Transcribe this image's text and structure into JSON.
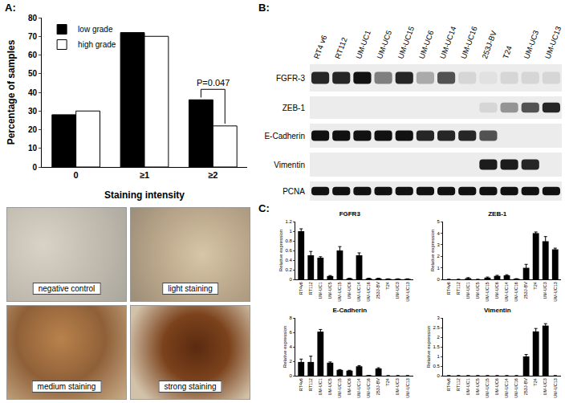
{
  "chart_data": [
    {
      "type": "bar",
      "x_label": "Staining intensity",
      "y_label": "Percentage of samples",
      "categories": [
        "0",
        "≥1",
        "≥2"
      ],
      "series": [
        {
          "name": "low grade",
          "color": "#000000",
          "values": [
            28,
            72,
            36
          ]
        },
        {
          "name": "high grade",
          "color": "#ffffff",
          "values": [
            30,
            70,
            22
          ]
        }
      ],
      "ylim": [
        0,
        80
      ],
      "yticks": [
        0,
        10,
        20,
        30,
        40,
        50,
        60,
        70,
        80
      ],
      "legend": "upper left",
      "grid": false,
      "annotations": [
        {
          "text": "P=0.047",
          "category": "≥2"
        }
      ]
    },
    {
      "type": "bar",
      "title": "FGFR3",
      "y_label": "Relative expression",
      "categories": [
        "RT4v6",
        "RT112",
        "UM-UC1",
        "UM-UC5",
        "UM-UC15",
        "UM-UC6",
        "UM-UC14",
        "UM-UC16",
        "253J-BV",
        "T24",
        "UM-UC3",
        "UM-UC13"
      ],
      "values": [
        1.0,
        0.5,
        0.45,
        0.07,
        0.6,
        0.02,
        0.5,
        0.02,
        0.02,
        0.01,
        0.01,
        0.01
      ],
      "errors": [
        0.05,
        0.08,
        0.02,
        0.01,
        0.08,
        0.0,
        0.05,
        0.0,
        0.0,
        0.0,
        0.0,
        0.0
      ],
      "color": "#000000",
      "ylim": [
        0,
        1.2
      ],
      "yticks": [
        0,
        0.2,
        0.4,
        0.6,
        0.8,
        1,
        1.2
      ],
      "grid": false
    },
    {
      "type": "bar",
      "title": "ZEB-1",
      "y_label": "Relative expression",
      "categories": [
        "RT4v6",
        "RT112",
        "UM-UC1",
        "UM-UC5",
        "UM-UC15",
        "UM-UC6",
        "UM-UC14",
        "UM-UC16",
        "253J-BV",
        "T24",
        "UM-UC3",
        "UM-UC13"
      ],
      "values": [
        0.0,
        0.0,
        0.1,
        0.0,
        0.15,
        0.3,
        0.35,
        0.05,
        1.0,
        4.0,
        3.3,
        2.6
      ],
      "errors": [
        0.0,
        0.0,
        0.05,
        0.0,
        0.05,
        0.05,
        0.05,
        0.0,
        0.3,
        0.1,
        0.4,
        0.1
      ],
      "color": "#000000",
      "ylim": [
        0,
        5
      ],
      "yticks": [
        0,
        1,
        2,
        3,
        4,
        5
      ],
      "grid": false
    },
    {
      "type": "bar",
      "title": "E-Cadherin",
      "y_label": "Relative expression",
      "categories": [
        "RT4v6",
        "RT112",
        "UM-UC1",
        "UM-UC5",
        "UM-UC15",
        "UM-UC6",
        "UM-UC14",
        "UM-UC16",
        "253J-BV",
        "T24",
        "UM-UC3",
        "UM-UC13"
      ],
      "values": [
        1.9,
        1.9,
        6.1,
        1.8,
        0.8,
        0.7,
        1.3,
        0.05,
        1.0,
        0.0,
        0.0,
        0.0
      ],
      "errors": [
        0.4,
        0.8,
        0.3,
        0.1,
        0.05,
        0.05,
        0.1,
        0.0,
        0.1,
        0.0,
        0.0,
        0.0
      ],
      "color": "#000000",
      "ylim": [
        0,
        8
      ],
      "yticks": [
        0,
        2,
        4,
        6,
        8
      ],
      "grid": false
    },
    {
      "type": "bar",
      "title": "Vimentin",
      "y_label": "Relative expression",
      "categories": [
        "RT4v6",
        "RT112",
        "UM-UC1",
        "UM-UC5",
        "UM-UC15",
        "UM-UC6",
        "UM-UC14",
        "UM-UC16",
        "253J-BV",
        "T24",
        "UM-UC3",
        "UM-UC13"
      ],
      "values": [
        0.0,
        0.0,
        0.0,
        0.0,
        0.0,
        0.0,
        0.0,
        0.0,
        1.0,
        2.3,
        2.6,
        0.0
      ],
      "errors": [
        0.0,
        0.0,
        0.0,
        0.0,
        0.0,
        0.0,
        0.0,
        0.0,
        0.1,
        0.15,
        0.1,
        0.0
      ],
      "color": "#000000",
      "ylim": [
        0,
        3
      ],
      "yticks": [
        0,
        0.5,
        1,
        1.5,
        2,
        2.5,
        3
      ],
      "grid": false
    }
  ],
  "panels": [
    "A:",
    "B:",
    "C:"
  ],
  "micrographs": [
    "negative control",
    "light staining",
    "medium staining",
    "strong staining"
  ],
  "blot": {
    "lanes": [
      "RT4 v6",
      "RT112",
      "UM-UC1",
      "UM-UC5",
      "UM-UC15",
      "UM-UC6",
      "UM-UC14",
      "UM-UC16",
      "253J-BV",
      "T24",
      "UM-UC3",
      "UM-UC13"
    ],
    "rows": [
      {
        "name": "FGFR-3",
        "bands": [
          0.9,
          0.9,
          1.0,
          0.5,
          0.9,
          0.3,
          0.7,
          0.1,
          0.05,
          0.1,
          0.1,
          0.1
        ]
      },
      {
        "name": "ZEB-1",
        "bands": [
          0,
          0,
          0,
          0,
          0,
          0,
          0,
          0,
          0.1,
          0.4,
          0.7,
          0.9
        ]
      },
      {
        "name": "E-Cadherin",
        "bands": [
          1,
          1,
          1,
          1,
          1,
          0.9,
          0.9,
          0.9,
          0.7,
          0,
          0,
          0
        ]
      },
      {
        "name": "Vimentin",
        "bands": [
          0,
          0,
          0,
          0,
          0,
          0,
          0,
          0,
          0.95,
          0.95,
          0.9,
          0
        ]
      },
      {
        "name": "PCNA",
        "bands": [
          1,
          1,
          1,
          1,
          1,
          1,
          1,
          1,
          1,
          1,
          1,
          1
        ]
      }
    ]
  }
}
